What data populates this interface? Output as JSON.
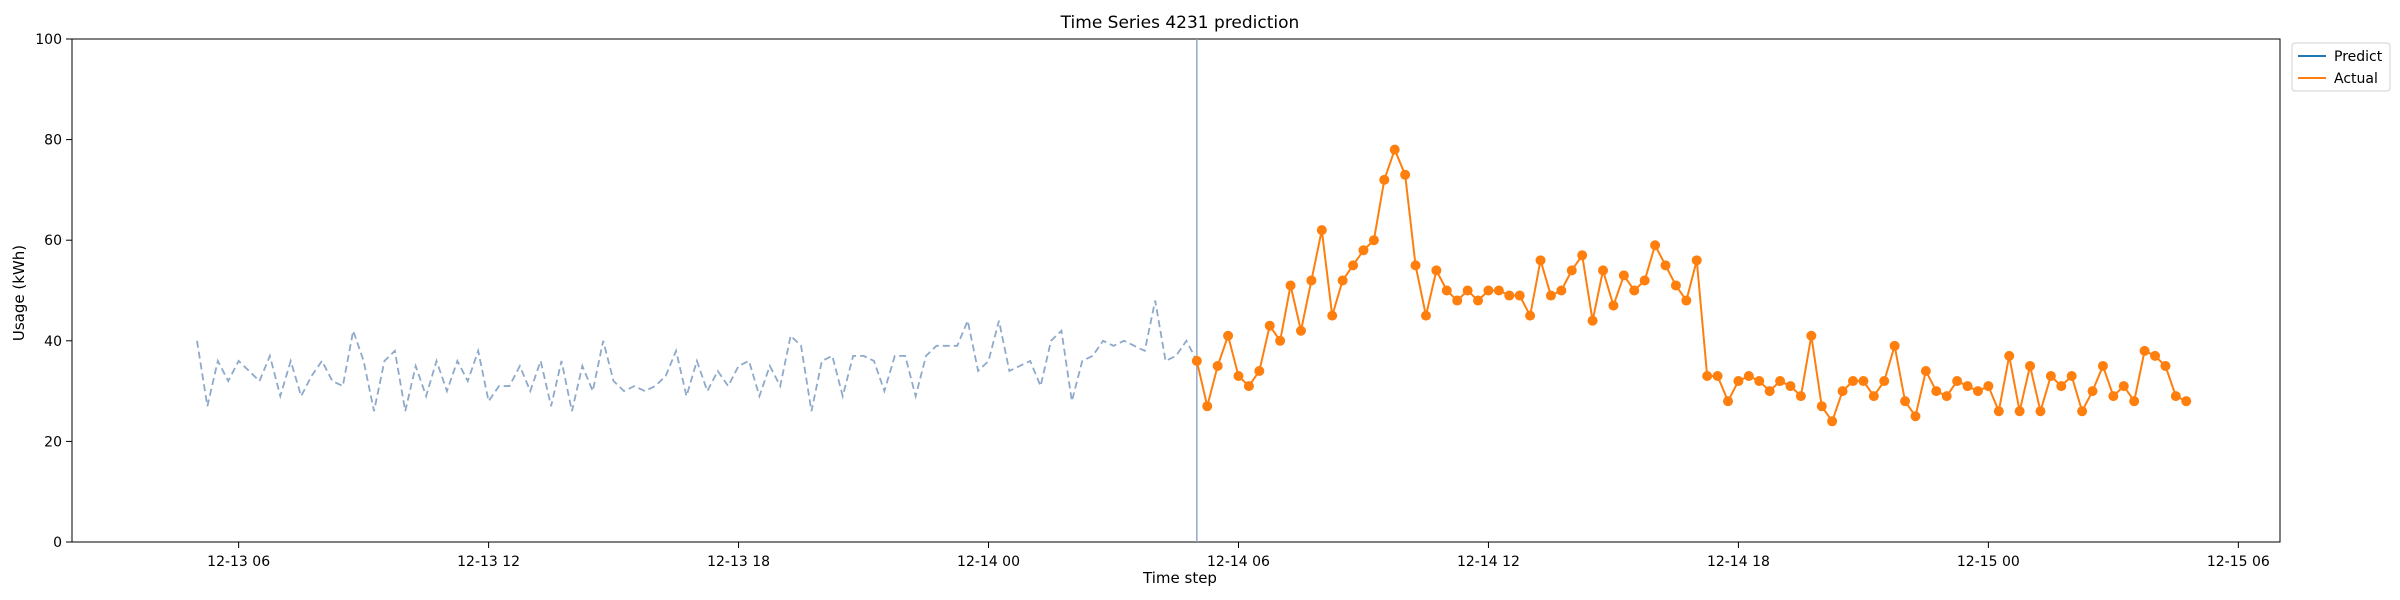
{
  "chart_data": {
    "type": "line",
    "title": "Time Series 4231 prediction",
    "xlabel": "Time step",
    "ylabel": "Usage (kWh)",
    "ylim": [
      0,
      100
    ],
    "yticks": [
      0,
      20,
      40,
      60,
      80,
      100
    ],
    "x_axis": {
      "unit": "hour",
      "range": [
        "12-13 02:00",
        "12-15 07:00"
      ],
      "ticks": [
        {
          "time": "12-13 06:00",
          "label": "12-13 06"
        },
        {
          "time": "12-13 12:00",
          "label": "12-13 12"
        },
        {
          "time": "12-13 18:00",
          "label": "12-13 18"
        },
        {
          "time": "12-14 00:00",
          "label": "12-14 00"
        },
        {
          "time": "12-14 06:00",
          "label": "12-14 06"
        },
        {
          "time": "12-14 12:00",
          "label": "12-14 12"
        },
        {
          "time": "12-14 18:00",
          "label": "12-14 18"
        },
        {
          "time": "12-15 00:00",
          "label": "12-15 00"
        },
        {
          "time": "12-15 06:00",
          "label": "12-15 06"
        }
      ]
    },
    "grid": false,
    "legend_position": "upper-right-outside",
    "marker_time": "12-14 05:00",
    "history": {
      "style": "dashed",
      "color": "#8fa9cb",
      "start": "12-13 05:00",
      "step_minutes": 15,
      "values": [
        40,
        27,
        36,
        32,
        36,
        34,
        32,
        37,
        29,
        36,
        29,
        33,
        36,
        32,
        31,
        42,
        36,
        26,
        36,
        38,
        26,
        35,
        29,
        36,
        30,
        36,
        32,
        38,
        28,
        31,
        31,
        35,
        30,
        36,
        27,
        36,
        26,
        35,
        30,
        40,
        32,
        30,
        31,
        30,
        31,
        33,
        38,
        29,
        36,
        30,
        34,
        31,
        35,
        36,
        29,
        35,
        31,
        41,
        39,
        26,
        36,
        37,
        29,
        37,
        37,
        36,
        30,
        37,
        37,
        29,
        37,
        39,
        39,
        39,
        44,
        34,
        36,
        44,
        34,
        35,
        36,
        31,
        40,
        42,
        28,
        36,
        37,
        40,
        39,
        40,
        39,
        38,
        48,
        36,
        37,
        40,
        36
      ]
    },
    "series": [
      {
        "name": "Predict",
        "color": "#1f77b4",
        "values": []
      },
      {
        "name": "Actual",
        "color": "#ff7f0e",
        "marker": "circle",
        "start": "12-14 05:00",
        "step_minutes": 15,
        "values": [
          36,
          27,
          35,
          41,
          33,
          31,
          34,
          43,
          40,
          51,
          42,
          52,
          62,
          45,
          52,
          55,
          58,
          60,
          72,
          78,
          73,
          55,
          45,
          54,
          50,
          48,
          50,
          48,
          50,
          50,
          49,
          49,
          45,
          56,
          49,
          50,
          54,
          57,
          44,
          54,
          47,
          53,
          50,
          52,
          59,
          55,
          51,
          48,
          56,
          33,
          33,
          28,
          32,
          33,
          32,
          30,
          32,
          31,
          29,
          41,
          27,
          24,
          30,
          32,
          32,
          29,
          32,
          39,
          28,
          25,
          34,
          30,
          29,
          32,
          31,
          30,
          31,
          26,
          37,
          26,
          35,
          26,
          33,
          31,
          33,
          26,
          30,
          35,
          29,
          31,
          28,
          38,
          37,
          35,
          29,
          28
        ]
      }
    ]
  }
}
